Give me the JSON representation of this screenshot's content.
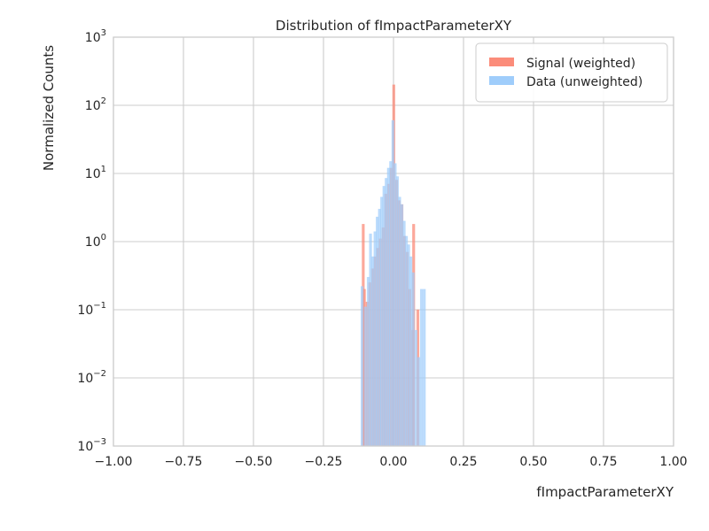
{
  "chart_data": {
    "type": "bar",
    "title": "Distribution of fImpactParameterXY",
    "xlabel": "fImpactParameterXY",
    "ylabel": "Normalized Counts",
    "xlim": [
      -1.0,
      1.0
    ],
    "ylim": [
      0.001,
      1000
    ],
    "yscale": "log",
    "grid": true,
    "legend_position": "top-right",
    "x_ticks": [
      "−1.00",
      "−0.75",
      "−0.50",
      "−0.25",
      "0.00",
      "0.25",
      "0.50",
      "0.75",
      "1.00"
    ],
    "x_tick_values": [
      -1.0,
      -0.75,
      -0.5,
      -0.25,
      0.0,
      0.25,
      0.5,
      0.75,
      1.0
    ],
    "y_tick_exponents": [
      -3,
      -2,
      -1,
      0,
      1,
      2,
      3
    ],
    "y_tick_base": "10",
    "series": [
      {
        "name": "Signal (weighted)",
        "color": "#fb8c7a",
        "bins": [
          {
            "x": -0.108,
            "v": 1.8
          },
          {
            "x": -0.104,
            "v": 0.2
          },
          {
            "x": -0.094,
            "v": 0.13
          },
          {
            "x": -0.085,
            "v": 0.25
          },
          {
            "x": -0.075,
            "v": 0.4
          },
          {
            "x": -0.066,
            "v": 0.6
          },
          {
            "x": -0.056,
            "v": 0.8
          },
          {
            "x": -0.047,
            "v": 1.1
          },
          {
            "x": -0.037,
            "v": 1.6
          },
          {
            "x": -0.028,
            "v": 5.0
          },
          {
            "x": -0.018,
            "v": 7.0
          },
          {
            "x": -0.008,
            "v": 12.0
          },
          {
            "x": 0.001,
            "v": 200.0
          },
          {
            "x": 0.011,
            "v": 8.0
          },
          {
            "x": 0.02,
            "v": 4.0
          },
          {
            "x": 0.03,
            "v": 3.5
          },
          {
            "x": 0.039,
            "v": 1.2
          },
          {
            "x": 0.049,
            "v": 0.7
          },
          {
            "x": 0.058,
            "v": 0.2
          },
          {
            "x": 0.068,
            "v": 0.05
          },
          {
            "x": 0.072,
            "v": 1.8
          },
          {
            "x": 0.087,
            "v": 0.1
          }
        ]
      },
      {
        "name": "Data (unweighted)",
        "color": "#9fcdfb",
        "bins": [
          {
            "x": -0.112,
            "v": 0.22
          },
          {
            "x": -0.1,
            "v": 0.11
          },
          {
            "x": -0.09,
            "v": 0.3
          },
          {
            "x": -0.082,
            "v": 1.3
          },
          {
            "x": -0.074,
            "v": 0.6
          },
          {
            "x": -0.066,
            "v": 1.4
          },
          {
            "x": -0.058,
            "v": 2.3
          },
          {
            "x": -0.05,
            "v": 3.0
          },
          {
            "x": -0.042,
            "v": 4.5
          },
          {
            "x": -0.034,
            "v": 6.5
          },
          {
            "x": -0.026,
            "v": 8.5
          },
          {
            "x": -0.018,
            "v": 12.0
          },
          {
            "x": -0.01,
            "v": 15.0
          },
          {
            "x": -0.002,
            "v": 60.0
          },
          {
            "x": 0.006,
            "v": 14.0
          },
          {
            "x": 0.014,
            "v": 9.0
          },
          {
            "x": 0.022,
            "v": 4.5
          },
          {
            "x": 0.03,
            "v": 3.5
          },
          {
            "x": 0.038,
            "v": 2.0
          },
          {
            "x": 0.046,
            "v": 1.2
          },
          {
            "x": 0.054,
            "v": 0.9
          },
          {
            "x": 0.062,
            "v": 0.6
          },
          {
            "x": 0.07,
            "v": 0.35
          },
          {
            "x": 0.08,
            "v": 0.05
          },
          {
            "x": 0.09,
            "v": 0.02
          },
          {
            "x": 0.1,
            "v": 0.2
          },
          {
            "x": 0.11,
            "v": 0.2
          }
        ]
      }
    ]
  }
}
